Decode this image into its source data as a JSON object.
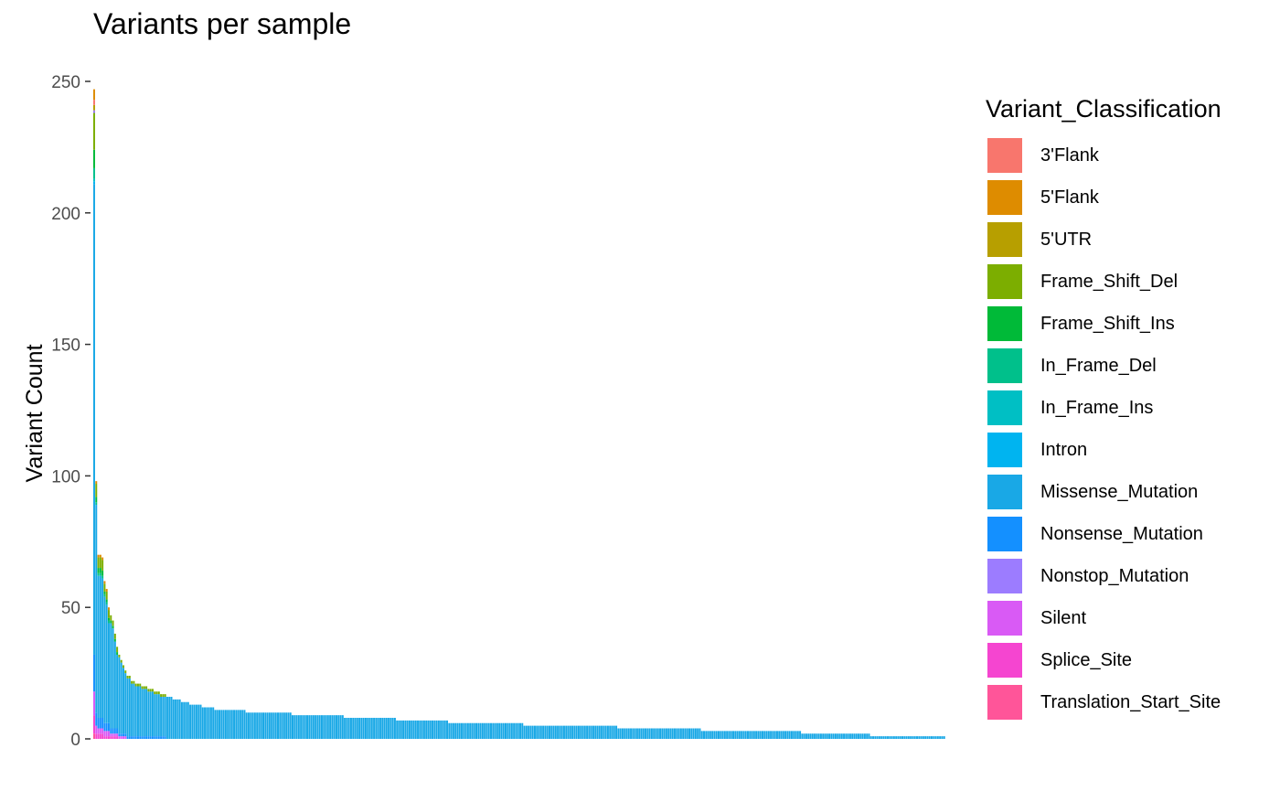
{
  "chart_data": {
    "type": "bar",
    "stacked": true,
    "title": "Variants per sample",
    "xlabel": "",
    "ylabel": "Variant Count",
    "ylim": [
      0,
      250
    ],
    "yticks": [
      0,
      50,
      100,
      150,
      200,
      250
    ],
    "legend": {
      "title": "Variant_Classification",
      "placement": "right",
      "entries": [
        {
          "name": "3'Flank",
          "color": "#F8766D"
        },
        {
          "name": "5'Flank",
          "color": "#DE8C00"
        },
        {
          "name": "5'UTR",
          "color": "#B79F00"
        },
        {
          "name": "Frame_Shift_Del",
          "color": "#7CAE00"
        },
        {
          "name": "Frame_Shift_Ins",
          "color": "#00BA38"
        },
        {
          "name": "In_Frame_Del",
          "color": "#00C08B"
        },
        {
          "name": "In_Frame_Ins",
          "color": "#00BFC4"
        },
        {
          "name": "Intron",
          "color": "#00B4F0"
        },
        {
          "name": "Missense_Mutation",
          "color": "#19A8E6"
        },
        {
          "name": "Nonsense_Mutation",
          "color": "#1490FF"
        },
        {
          "name": "Nonstop_Mutation",
          "color": "#9C7CFF"
        },
        {
          "name": "Silent",
          "color": "#D95AF5"
        },
        {
          "name": "Splice_Site",
          "color": "#F545D0"
        },
        {
          "name": "Translation_Start_Site",
          "color": "#FF5599"
        }
      ]
    },
    "grid": false,
    "sample_totals": [
      [
        1,
        247
      ],
      [
        1,
        98
      ],
      [
        2,
        70
      ],
      [
        1,
        69
      ],
      [
        1,
        60
      ],
      [
        1,
        57
      ],
      [
        1,
        50
      ],
      [
        1,
        47
      ],
      [
        1,
        45
      ],
      [
        1,
        40
      ],
      [
        1,
        35
      ],
      [
        1,
        32
      ],
      [
        1,
        30
      ],
      [
        1,
        28
      ],
      [
        1,
        26
      ],
      [
        2,
        24
      ],
      [
        2,
        22
      ],
      [
        3,
        21
      ],
      [
        3,
        20
      ],
      [
        3,
        19
      ],
      [
        3,
        18
      ],
      [
        3,
        17
      ],
      [
        3,
        16
      ],
      [
        4,
        15
      ],
      [
        4,
        14
      ],
      [
        6,
        13
      ],
      [
        6,
        12
      ],
      [
        15,
        11
      ],
      [
        22,
        10
      ],
      [
        25,
        9
      ],
      [
        25,
        8
      ],
      [
        25,
        7
      ],
      [
        36,
        6
      ],
      [
        45,
        5
      ],
      [
        40,
        4
      ],
      [
        48,
        3
      ],
      [
        33,
        2
      ],
      [
        36,
        1
      ]
    ],
    "stack_profile": {
      "Missense_Mutation": 0.7,
      "Nonsense_Mutation": 0.06,
      "Frame_Shift_Del": 0.06,
      "Silent": 0.04,
      "Splice_Site": 0.03,
      "Frame_Shift_Ins": 0.03,
      "5'Flank": 0.02,
      "In_Frame_Del": 0.02,
      "Translation_Start_Site": 0.01,
      "3'Flank": 0.01,
      "5'UTR": 0.01,
      "In_Frame_Ins": 0.005,
      "Intron": 0.005,
      "Nonstop_Mutation": 0.005
    }
  }
}
